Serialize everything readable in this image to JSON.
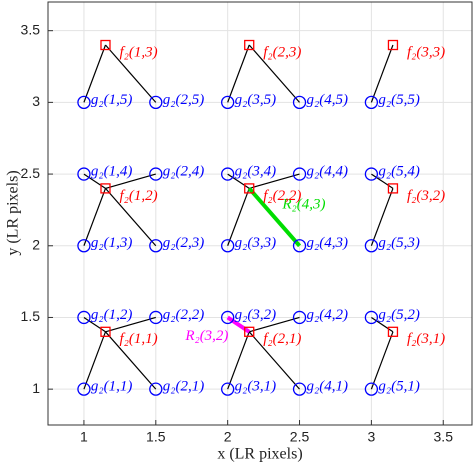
{
  "chart_data": {
    "type": "scatter",
    "xlabel": "x (LR pixels)",
    "ylabel": "y (LR pixels)",
    "xlim": [
      0.75,
      3.7
    ],
    "ylim": [
      0.75,
      3.7
    ],
    "xticks": [
      1,
      1.5,
      2,
      2.5,
      3,
      3.5
    ],
    "yticks": [
      1,
      1.5,
      2,
      2.5,
      3,
      3.5
    ],
    "grid": true,
    "series": [
      {
        "marker": "circle",
        "color": "#0000ff",
        "x": [
          1,
          1.5,
          1,
          1.5,
          2,
          2.5,
          2,
          2.5,
          3,
          3,
          1,
          1.5,
          1,
          1.5,
          2,
          2.5,
          2,
          2.5,
          3,
          3,
          1,
          1.5,
          2,
          2.5,
          3
        ],
        "values": [
          1,
          1,
          1.5,
          1.5,
          1,
          1,
          1.5,
          1.5,
          1,
          1.5,
          2,
          2,
          2.5,
          2.5,
          2,
          2,
          2.5,
          2.5,
          2,
          2.5,
          3,
          3,
          3,
          3,
          3
        ],
        "labels": [
          "g₂(1,1)",
          "g₂(2,1)",
          "g₂(1,2)",
          "g₂(2,2)",
          "g₂(3,1)",
          "g₂(4,1)",
          "g₂(3,2)",
          "g₂(4,2)",
          "g₂(5,1)",
          "g₂(5,2)",
          "g₂(1,3)",
          "g₂(2,3)",
          "g₂(1,4)",
          "g₂(2,4)",
          "g₂(3,3)",
          "g₂(4,3)",
          "g₂(3,4)",
          "g₂(4,4)",
          "g₂(5,3)",
          "g₂(5,4)",
          "g₂(1,5)",
          "g₂(2,5)",
          "g₂(3,5)",
          "g₂(4,5)",
          "g₂(5,5)"
        ]
      },
      {
        "marker": "square",
        "color": "#ff0000",
        "x": [
          1.15,
          2.15,
          3.15,
          1.15,
          2.15,
          3.15,
          1.15,
          2.15,
          3.15
        ],
        "values": [
          1.4,
          1.4,
          1.4,
          2.4,
          2.4,
          2.4,
          3.4,
          3.4,
          3.4
        ],
        "labels": [
          "f₂(1,1)",
          "f₂(2,1)",
          "f₂(3,1)",
          "f₂(1,2)",
          "f₂(2,2)",
          "f₂(3,2)",
          "f₂(1,3)",
          "f₂(2,3)",
          "f₂(3,3)"
        ]
      }
    ],
    "segments": [
      [
        1.15,
        1.4,
        1,
        1
      ],
      [
        1.15,
        1.4,
        1.5,
        1
      ],
      [
        1.15,
        1.4,
        1,
        1.5
      ],
      [
        1.15,
        1.4,
        1.5,
        1.5
      ],
      [
        2.15,
        1.4,
        2,
        1
      ],
      [
        2.15,
        1.4,
        2.5,
        1
      ],
      [
        2.15,
        1.4,
        2.5,
        1.5
      ],
      [
        3.15,
        1.4,
        3,
        1
      ],
      [
        3.15,
        1.4,
        3,
        1.5
      ],
      [
        1.15,
        2.4,
        1,
        2
      ],
      [
        1.15,
        2.4,
        1.5,
        2
      ],
      [
        1.15,
        2.4,
        1,
        2.5
      ],
      [
        1.15,
        2.4,
        1.5,
        2.5
      ],
      [
        2.15,
        2.4,
        2,
        2
      ],
      [
        2.15,
        2.4,
        2,
        2.5
      ],
      [
        2.15,
        2.4,
        2.5,
        2.5
      ],
      [
        3.15,
        2.4,
        3,
        2
      ],
      [
        3.15,
        2.4,
        3,
        2.5
      ],
      [
        1.15,
        3.4,
        1,
        3
      ],
      [
        1.15,
        3.4,
        1.5,
        3
      ],
      [
        2.15,
        3.4,
        2,
        3
      ],
      [
        2.15,
        3.4,
        2.5,
        3
      ],
      [
        3.15,
        3.4,
        3,
        3
      ]
    ],
    "highlights": [
      {
        "label": "R₂(4,3)",
        "color": "#00dd00",
        "x": [
          2.15,
          2.5
        ],
        "y": [
          2.4,
          2
        ]
      },
      {
        "label": "R₂(3,2)",
        "color": "#ff00ff",
        "x": [
          2,
          2.15
        ],
        "y": [
          1.5,
          1.4
        ]
      }
    ]
  }
}
